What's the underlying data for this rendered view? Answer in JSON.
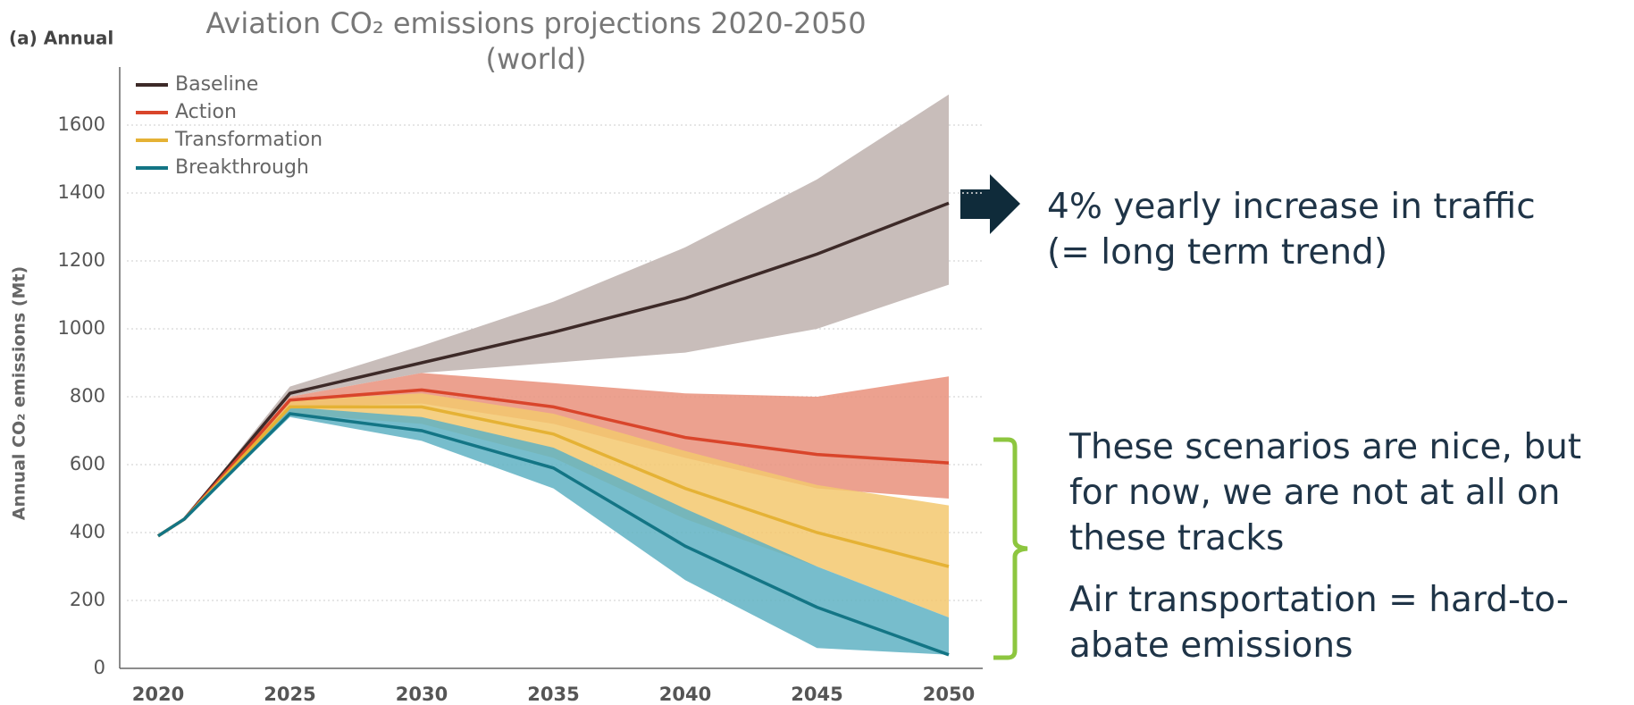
{
  "chart_data": {
    "type": "line",
    "panel_label": "(a) Annual",
    "title": "Aviation CO₂ emissions projections 2020-2050 (world)",
    "ylabel": "Annual CO₂ emissions (Mt)",
    "x": [
      2020,
      2021,
      2025,
      2030,
      2035,
      2040,
      2045,
      2050
    ],
    "xlim": [
      2020,
      2050
    ],
    "xticks": [
      2020,
      2025,
      2030,
      2035,
      2040,
      2045,
      2050
    ],
    "ylim": [
      0,
      1600
    ],
    "yticks": [
      0,
      200,
      400,
      600,
      800,
      1000,
      1200,
      1400,
      1600
    ],
    "grid": true,
    "series": [
      {
        "name": "Baseline",
        "color": "#3d2a28",
        "band_color": "#c8bdba",
        "values": [
          390,
          440,
          810,
          900,
          990,
          1090,
          1220,
          1370
        ],
        "band_low": [
          390,
          440,
          800,
          870,
          900,
          930,
          1000,
          1130
        ],
        "band_high": [
          390,
          440,
          830,
          950,
          1080,
          1240,
          1440,
          1690
        ]
      },
      {
        "name": "Action",
        "color": "#d9452b",
        "band_color": "#e9907b",
        "values": [
          390,
          440,
          790,
          820,
          770,
          680,
          630,
          605
        ],
        "band_low": [
          390,
          440,
          770,
          780,
          720,
          620,
          530,
          500
        ],
        "band_high": [
          390,
          440,
          800,
          870,
          840,
          810,
          800,
          860
        ]
      },
      {
        "name": "Transformation",
        "color": "#e5b235",
        "band_color": "#f3c86e",
        "values": [
          390,
          440,
          770,
          770,
          690,
          530,
          400,
          300
        ],
        "band_low": [
          390,
          440,
          750,
          720,
          620,
          440,
          300,
          150
        ],
        "band_high": [
          390,
          440,
          790,
          810,
          750,
          640,
          540,
          480
        ]
      },
      {
        "name": "Breakthrough",
        "color": "#137585",
        "band_color": "#5fb2c3",
        "values": [
          390,
          440,
          750,
          700,
          590,
          360,
          180,
          40
        ],
        "band_low": [
          390,
          440,
          740,
          670,
          530,
          260,
          60,
          40
        ],
        "band_high": [
          390,
          440,
          770,
          740,
          650,
          470,
          300,
          150
        ]
      }
    ],
    "annotations": [
      "4% yearly increase in traffic (= long term trend)",
      "These scenarios are nice, but for now, we are not at all on these tracks",
      "Air transportation = hard-to-abate emissions"
    ]
  }
}
